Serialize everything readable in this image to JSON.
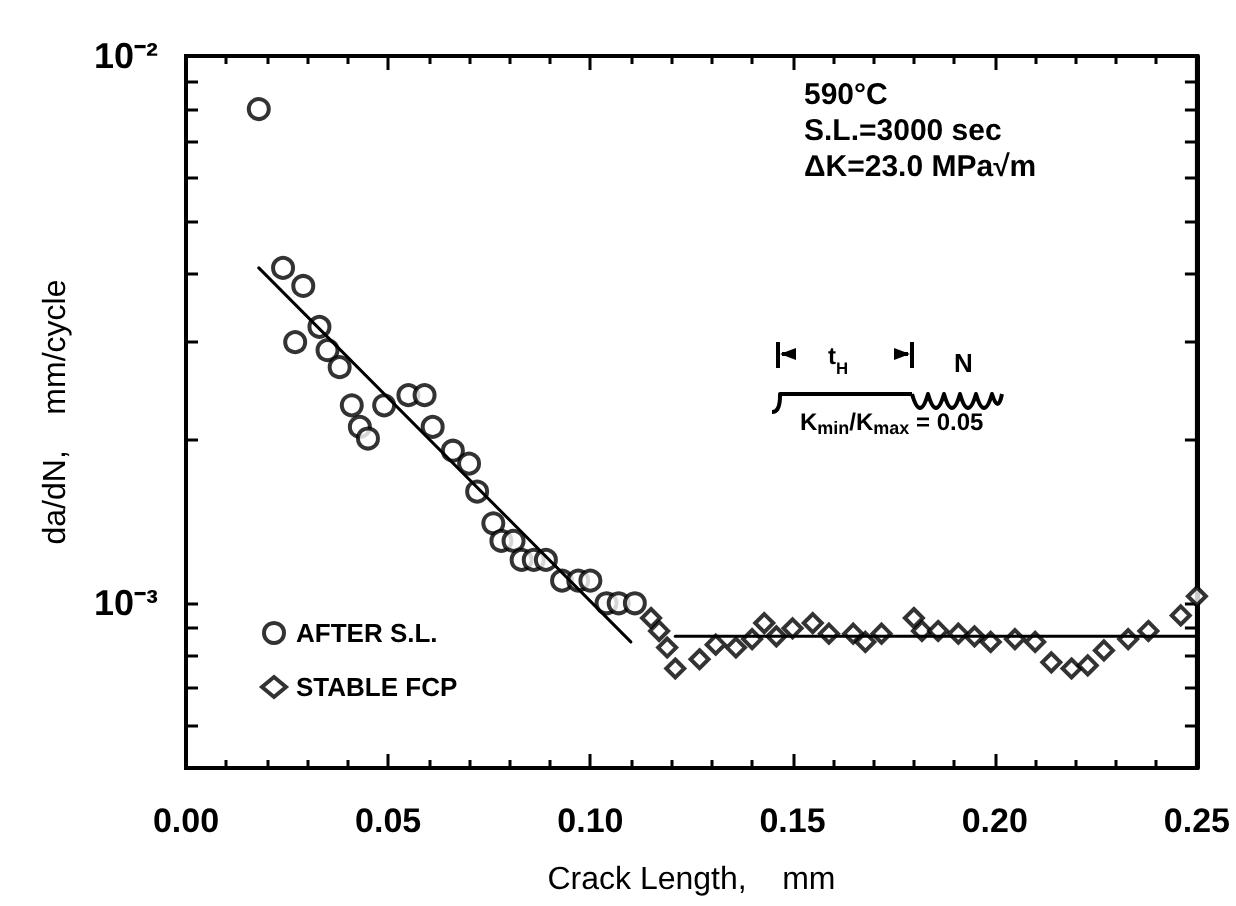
{
  "chart_data": {
    "type": "scatter",
    "xlabel": "Crack Length,    mm",
    "ylabel": "da/dN,    mm/cycle",
    "log": "y",
    "grid": false,
    "legend": "bottom left",
    "xlim": [
      0,
      0.25
    ],
    "ylim": [
      0.0005,
      0.01
    ],
    "xticks": [
      {
        "value": 0,
        "label": "0.00"
      },
      {
        "value": 0.05,
        "label": "0.05"
      },
      {
        "value": 0.1,
        "label": "0.10"
      },
      {
        "value": 0.15,
        "label": "0.15"
      },
      {
        "value": 0.2,
        "label": "0.20"
      },
      {
        "value": 0.25,
        "label": "0.25"
      }
    ],
    "yticks": [
      {
        "value": 0.001,
        "label": "10⁻³"
      },
      {
        "value": 0.01,
        "label": "10⁻²"
      }
    ],
    "annotations": [
      "590°C",
      "S.L.=3000 sec",
      "ΔK=23.0 MPa√m",
      "t$_{H}$",
      "N",
      "K$_{min}$/K$_{max}$ = 0.05"
    ],
    "series": [
      {
        "name": "AFTER S.L.",
        "marker": "circle",
        "color": "#000000",
        "x": [
          0.018,
          0.024,
          0.027,
          0.029,
          0.033,
          0.035,
          0.038,
          0.041,
          0.043,
          0.045,
          0.049,
          0.055,
          0.059,
          0.061,
          0.066,
          0.07,
          0.072,
          0.076,
          0.078,
          0.081,
          0.083,
          0.086,
          0.089,
          0.093,
          0.097,
          0.1,
          0.104,
          0.107,
          0.111
        ],
        "values": [
          0.008,
          0.0041,
          0.003,
          0.0038,
          0.0032,
          0.0029,
          0.0027,
          0.0023,
          0.0021,
          0.002,
          0.0023,
          0.0024,
          0.0024,
          0.0021,
          0.0019,
          0.0018,
          0.0016,
          0.0014,
          0.0013,
          0.0013,
          0.0012,
          0.0012,
          0.0012,
          0.0011,
          0.0011,
          0.0011,
          0.001,
          0.001,
          0.001
        ]
      },
      {
        "name": "STABLE FCP",
        "marker": "diamond",
        "color": "#000000",
        "x": [
          0.115,
          0.117,
          0.119,
          0.121,
          0.127,
          0.131,
          0.136,
          0.14,
          0.143,
          0.146,
          0.15,
          0.155,
          0.159,
          0.165,
          0.168,
          0.172,
          0.18,
          0.182,
          0.186,
          0.191,
          0.195,
          0.199,
          0.205,
          0.21,
          0.214,
          0.219,
          0.223,
          0.227,
          0.233,
          0.238,
          0.246,
          0.25
        ],
        "values": [
          0.00094,
          0.00089,
          0.00083,
          0.00076,
          0.00079,
          0.00084,
          0.00083,
          0.00086,
          0.00092,
          0.00087,
          0.0009,
          0.00092,
          0.00088,
          0.00088,
          0.00085,
          0.00088,
          0.00094,
          0.00089,
          0.00089,
          0.00088,
          0.00087,
          0.00085,
          0.00086,
          0.00085,
          0.00078,
          0.00076,
          0.00077,
          0.00082,
          0.00086,
          0.00089,
          0.00095,
          0.00103
        ]
      },
      {
        "type": "line",
        "marker": "none",
        "color": "#000000",
        "x": [
          0.018,
          0.11
        ],
        "values": [
          0.0041,
          0.00085
        ]
      },
      {
        "type": "line",
        "marker": "none",
        "color": "#000000",
        "x": [
          0.121,
          0.25
        ],
        "values": [
          0.00087,
          0.00087
        ]
      }
    ]
  }
}
